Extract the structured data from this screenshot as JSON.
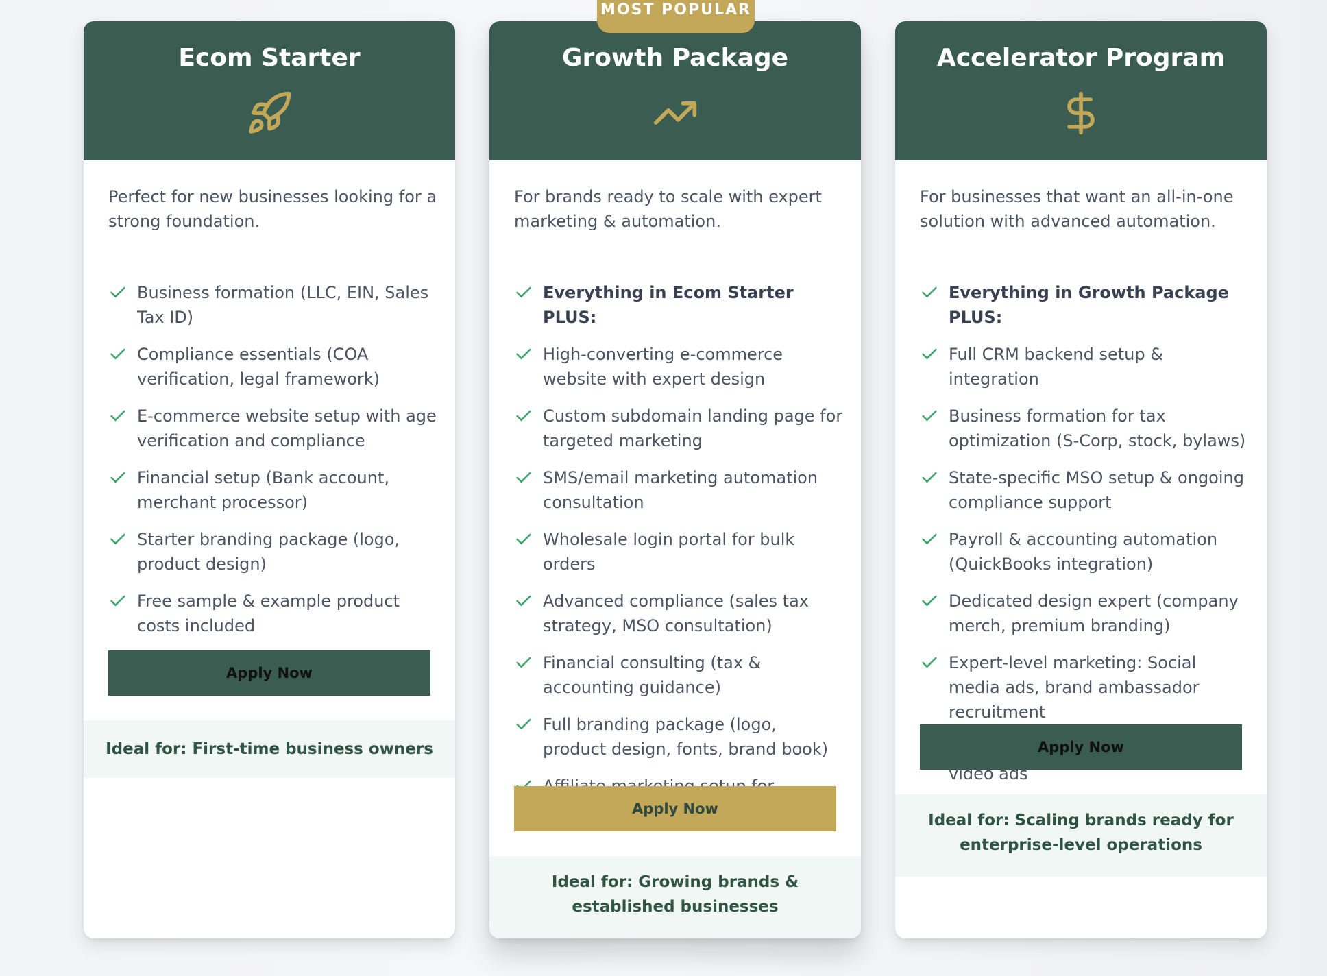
{
  "colors": {
    "header_green": "#3a5c51",
    "accent_gold": "#c4a85a",
    "check_green": "#3fa36b",
    "ideal_bg": "#f1f7f4"
  },
  "badge": {
    "label": "MOST POPULAR"
  },
  "plans": [
    {
      "title": "Ecom Starter",
      "icon": "rocket-icon",
      "description": "Perfect for new businesses looking for a strong foundation.",
      "features": [
        "Business formation (LLC, EIN, Sales Tax ID)",
        "Compliance essentials (COA verification, legal framework)",
        "E-commerce website setup with age verification and compliance",
        "Financial setup (Bank account, merchant processor)",
        "Starter branding package (logo, product design)",
        "Free sample & example product costs included"
      ],
      "button": "Apply Now",
      "ideal": "Ideal for: First-time business owners"
    },
    {
      "title": "Growth Package",
      "icon": "trending-up-icon",
      "description": "For brands ready to scale with expert marketing & automation.",
      "features": [
        "Everything in Ecom Starter PLUS:",
        "High-converting e-commerce website with expert design",
        "Custom subdomain landing page for targeted marketing",
        "SMS/email marketing automation consultation",
        "Wholesale login portal for bulk orders",
        "Advanced compliance (sales tax strategy, MSO consultation)",
        "Financial consulting (tax & accounting guidance)",
        "Full branding package (logo, product design, fonts, brand book)",
        "Affiliate marketing setup for influencers & brand ambassadors"
      ],
      "button": "Apply Now",
      "ideal": "Ideal for: Growing brands & established businesses"
    },
    {
      "title": "Accelerator Program",
      "icon": "dollar-icon",
      "description": "For businesses that want an all-in-one solution with advanced automation.",
      "features": [
        "Everything in Growth Package PLUS:",
        "Full CRM backend setup & integration",
        "Business formation for tax optimization (S-Corp, stock, bylaws)",
        "State-specific MSO setup & ongoing compliance support",
        "Payroll & accounting automation (QuickBooks integration)",
        "Dedicated design expert (company merch, premium branding)",
        "Expert-level marketing: Social media ads, brand ambassador recruitment",
        "UGC content creation, static ads, video ads"
      ],
      "button": "Apply Now",
      "ideal": "Ideal for: Scaling brands ready for enterprise-level operations"
    }
  ]
}
